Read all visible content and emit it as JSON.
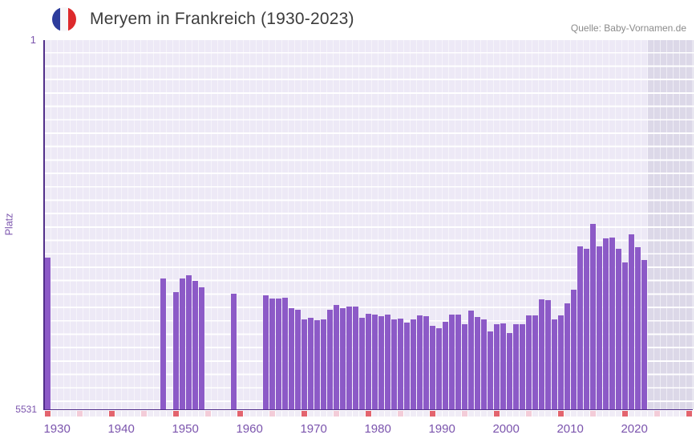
{
  "header": {
    "title": "Meryem in Frankreich (1930-2023)",
    "source": "Quelle: Baby-Vornamen.de",
    "flag_icon": "france-flag-icon"
  },
  "chart_data": {
    "type": "bar",
    "title": "Meryem in Frankreich (1930-2023)",
    "xlabel": "",
    "ylabel": "Platz",
    "y_axis": {
      "top_tick_label": "1",
      "bottom_tick_label": "5531",
      "min": 1,
      "max": 5531,
      "inverted": true
    },
    "x_ticks": [
      1930,
      1940,
      1950,
      1960,
      1970,
      1980,
      1990,
      2000,
      2010,
      2020
    ],
    "x_range": [
      1930,
      2030
    ],
    "last_data_year": 2023,
    "grid": true,
    "legend_position": "none",
    "series": [
      {
        "year": 1930,
        "rank": 3261
      },
      {
        "year": 1948,
        "rank": 3571
      },
      {
        "year": 1950,
        "rank": 3772
      },
      {
        "year": 1951,
        "rank": 3567
      },
      {
        "year": 1952,
        "rank": 3527
      },
      {
        "year": 1953,
        "rank": 3603
      },
      {
        "year": 1954,
        "rank": 3704
      },
      {
        "year": 1959,
        "rank": 3801
      },
      {
        "year": 1964,
        "rank": 3820
      },
      {
        "year": 1965,
        "rank": 3868
      },
      {
        "year": 1966,
        "rank": 3868
      },
      {
        "year": 1967,
        "rank": 3865
      },
      {
        "year": 1968,
        "rank": 4018
      },
      {
        "year": 1969,
        "rank": 4042
      },
      {
        "year": 1970,
        "rank": 4180
      },
      {
        "year": 1971,
        "rank": 4155
      },
      {
        "year": 1972,
        "rank": 4194
      },
      {
        "year": 1973,
        "rank": 4187
      },
      {
        "year": 1974,
        "rank": 4037
      },
      {
        "year": 1975,
        "rank": 3973
      },
      {
        "year": 1976,
        "rank": 4013
      },
      {
        "year": 1977,
        "rank": 3990
      },
      {
        "year": 1978,
        "rank": 3993
      },
      {
        "year": 1979,
        "rank": 4165
      },
      {
        "year": 1980,
        "rank": 4100
      },
      {
        "year": 1981,
        "rank": 4113
      },
      {
        "year": 1982,
        "rank": 4142
      },
      {
        "year": 1983,
        "rank": 4114
      },
      {
        "year": 1984,
        "rank": 4182
      },
      {
        "year": 1985,
        "rank": 4172
      },
      {
        "year": 1986,
        "rank": 4235
      },
      {
        "year": 1987,
        "rank": 4188
      },
      {
        "year": 1988,
        "rank": 4122
      },
      {
        "year": 1989,
        "rank": 4139
      },
      {
        "year": 1990,
        "rank": 4284
      },
      {
        "year": 1991,
        "rank": 4318
      },
      {
        "year": 1992,
        "rank": 4225
      },
      {
        "year": 1993,
        "rank": 4110
      },
      {
        "year": 1994,
        "rank": 4114
      },
      {
        "year": 1995,
        "rank": 4262
      },
      {
        "year": 1996,
        "rank": 4050
      },
      {
        "year": 1997,
        "rank": 4150
      },
      {
        "year": 1998,
        "rank": 4188
      },
      {
        "year": 1999,
        "rank": 4363
      },
      {
        "year": 2000,
        "rank": 4253
      },
      {
        "year": 2001,
        "rank": 4245
      },
      {
        "year": 2002,
        "rank": 4392
      },
      {
        "year": 2003,
        "rank": 4262
      },
      {
        "year": 2004,
        "rank": 4253
      },
      {
        "year": 2005,
        "rank": 4122
      },
      {
        "year": 2006,
        "rank": 4130
      },
      {
        "year": 2007,
        "rank": 3890
      },
      {
        "year": 2008,
        "rank": 3893
      },
      {
        "year": 2009,
        "rank": 4182
      },
      {
        "year": 2010,
        "rank": 4122
      },
      {
        "year": 2011,
        "rank": 3941
      },
      {
        "year": 2012,
        "rank": 3740
      },
      {
        "year": 2013,
        "rank": 3096
      },
      {
        "year": 2014,
        "rank": 3128
      },
      {
        "year": 2015,
        "rank": 2754
      },
      {
        "year": 2016,
        "rank": 3096
      },
      {
        "year": 2017,
        "rank": 2975
      },
      {
        "year": 2018,
        "rank": 2963
      },
      {
        "year": 2019,
        "rank": 3128
      },
      {
        "year": 2020,
        "rank": 3337
      },
      {
        "year": 2021,
        "rank": 2907
      },
      {
        "year": 2022,
        "rank": 3108
      },
      {
        "year": 2023,
        "rank": 3297
      }
    ],
    "colors": {
      "bar": "#8c5ac7",
      "plot_background": "#ede9f6",
      "beyond_data_background": "#dcd8e8",
      "axis_line": "#512e8a",
      "axis_text": "#7b54ad",
      "decade_marker": "#e3646e",
      "five_year_marker": "#f3ccd8",
      "year_marker": "#f0ecf6",
      "title_text": "#3c3c3c",
      "source_text": "#8b8b8b",
      "flag_blue": "#2d3c9c",
      "flag_white": "#f7f7f9",
      "flag_red": "#dd2a2c"
    }
  }
}
